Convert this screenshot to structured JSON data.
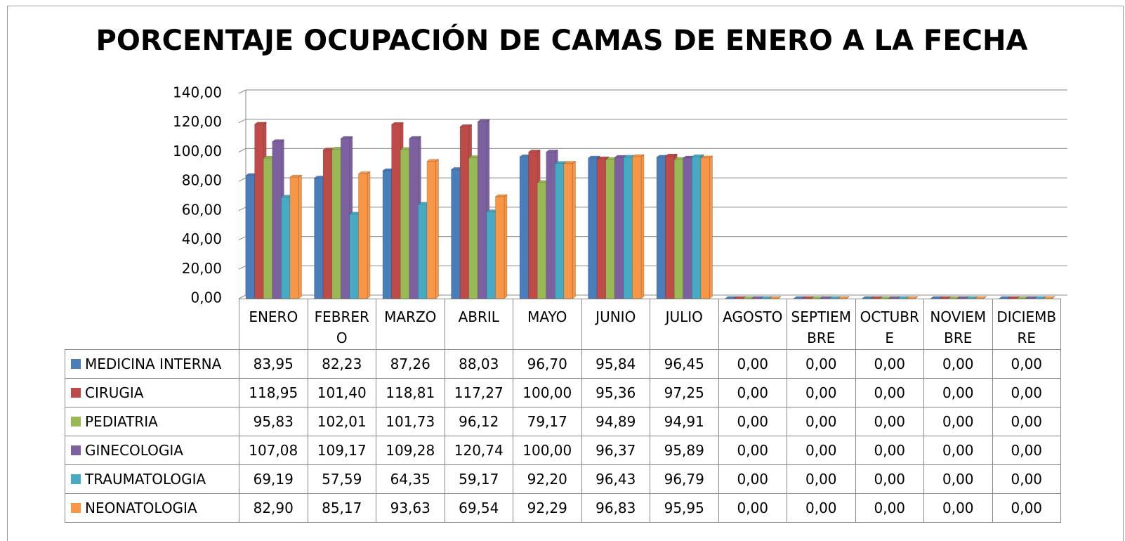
{
  "chart_data": {
    "type": "bar",
    "title": "PORCENTAJE OCUPACIÓN DE CAMAS DE ENERO A LA FECHA",
    "categories": [
      "ENERO",
      "FEBRERO",
      "MARZO",
      "ABRIL",
      "MAYO",
      "JUNIO",
      "JULIO",
      "AGOSTO",
      "SEPTIEMBRE",
      "OCTUBRE",
      "NOVIEMBRE",
      "DICIEMBRE"
    ],
    "ylim": [
      0,
      140
    ],
    "yticks": [
      {
        "value": 0,
        "label": "0,00"
      },
      {
        "value": 20,
        "label": "20,00"
      },
      {
        "value": 40,
        "label": "40,00"
      },
      {
        "value": 60,
        "label": "60,00"
      },
      {
        "value": 80,
        "label": "80,00"
      },
      {
        "value": 100,
        "label": "100,00"
      },
      {
        "value": 120,
        "label": "120,00"
      },
      {
        "value": 140,
        "label": "140,00"
      }
    ],
    "grid": true,
    "series": [
      {
        "name": "MEDICINA INTERNA",
        "color": "#4a7ebb",
        "values": [
          83.95,
          82.23,
          87.26,
          88.03,
          96.7,
          95.84,
          96.45,
          0,
          0,
          0,
          0,
          0
        ],
        "value_labels": [
          "83,95",
          "82,23",
          "87,26",
          "88,03",
          "96,70",
          "95,84",
          "96,45",
          "0,00",
          "0,00",
          "0,00",
          "0,00",
          "0,00"
        ]
      },
      {
        "name": "CIRUGIA",
        "color": "#be4b48",
        "values": [
          118.95,
          101.4,
          118.81,
          117.27,
          100.0,
          95.36,
          97.25,
          0,
          0,
          0,
          0,
          0
        ],
        "value_labels": [
          "118,95",
          "101,40",
          "118,81",
          "117,27",
          "100,00",
          "95,36",
          "97,25",
          "0,00",
          "0,00",
          "0,00",
          "0,00",
          "0,00"
        ]
      },
      {
        "name": "PEDIATRIA",
        "color": "#98b954",
        "values": [
          95.83,
          102.01,
          101.73,
          96.12,
          79.17,
          94.89,
          94.91,
          0,
          0,
          0,
          0,
          0
        ],
        "value_labels": [
          "95,83",
          "102,01",
          "101,73",
          "96,12",
          "79,17",
          "94,89",
          "94,91",
          "0,00",
          "0,00",
          "0,00",
          "0,00",
          "0,00"
        ]
      },
      {
        "name": "GINECOLOGIA",
        "color": "#7d60a0",
        "values": [
          107.08,
          109.17,
          109.28,
          120.74,
          100.0,
          96.37,
          95.89,
          0,
          0,
          0,
          0,
          0
        ],
        "value_labels": [
          "107,08",
          "109,17",
          "109,28",
          "120,74",
          "100,00",
          "96,37",
          "95,89",
          "0,00",
          "0,00",
          "0,00",
          "0,00",
          "0,00"
        ]
      },
      {
        "name": "TRAUMATOLOGIA",
        "color": "#46aac5",
        "values": [
          69.19,
          57.59,
          64.35,
          59.17,
          92.2,
          96.43,
          96.79,
          0,
          0,
          0,
          0,
          0
        ],
        "value_labels": [
          "69,19",
          "57,59",
          "64,35",
          "59,17",
          "92,20",
          "96,43",
          "96,79",
          "0,00",
          "0,00",
          "0,00",
          "0,00",
          "0,00"
        ]
      },
      {
        "name": "NEONATOLOGIA",
        "color": "#f79646",
        "values": [
          82.9,
          85.17,
          93.63,
          69.54,
          92.29,
          96.83,
          95.95,
          0,
          0,
          0,
          0,
          0
        ],
        "value_labels": [
          "82,90",
          "85,17",
          "93,63",
          "69,54",
          "92,29",
          "96,83",
          "95,95",
          "0,00",
          "0,00",
          "0,00",
          "0,00",
          "0,00"
        ]
      }
    ]
  }
}
